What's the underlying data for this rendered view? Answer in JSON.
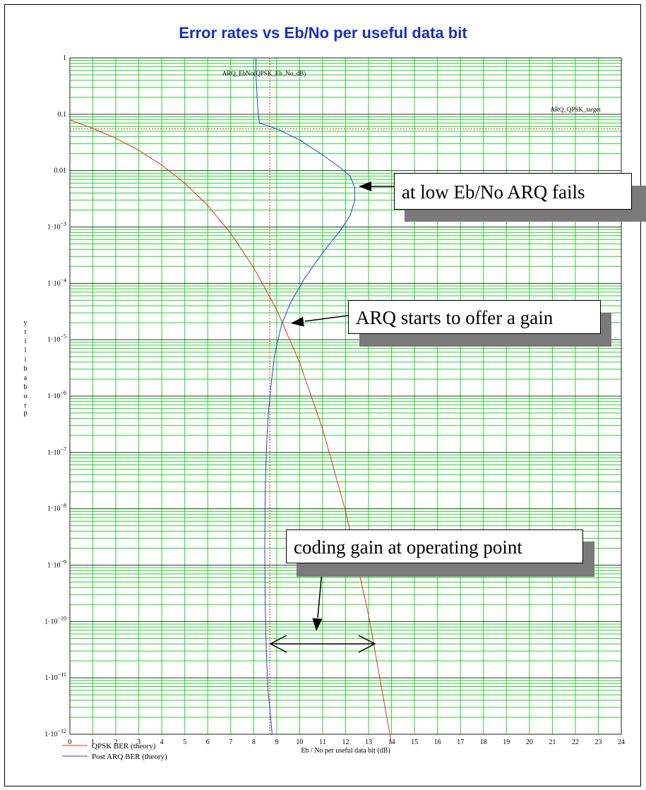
{
  "chart_data": {
    "type": "line",
    "title": "Error rates vs Eb/No per useful data bit",
    "xlabel": "Eb / No per useful data bit (dB)",
    "ylabel": "Probability",
    "y_scale": "log",
    "xlim": [
      0,
      24
    ],
    "ylim": [
      1e-12,
      1
    ],
    "x_ticks": [
      "0",
      "1",
      "2",
      "3",
      "4",
      "5",
      "6",
      "7",
      "8",
      "9",
      "10",
      "11",
      "12",
      "13",
      "14",
      "15",
      "16",
      "17",
      "18",
      "19",
      "20",
      "21",
      "22",
      "23",
      "24"
    ],
    "y_ticks": [
      {
        "value": 1,
        "base": "1",
        "exp": ""
      },
      {
        "value": 0.1,
        "base": "0.1",
        "exp": ""
      },
      {
        "value": 0.01,
        "base": "0.01",
        "exp": ""
      },
      {
        "value": 0.001,
        "base": "1·10",
        "exp": "−3"
      },
      {
        "value": 0.0001,
        "base": "1·10",
        "exp": "−4"
      },
      {
        "value": 1e-05,
        "base": "1·10",
        "exp": "−5"
      },
      {
        "value": 1e-06,
        "base": "1·10",
        "exp": "−6"
      },
      {
        "value": 1e-07,
        "base": "1·10",
        "exp": "−7"
      },
      {
        "value": 1e-08,
        "base": "1·10",
        "exp": "−8"
      },
      {
        "value": 1e-09,
        "base": "1·10",
        "exp": "−9"
      },
      {
        "value": 1e-10,
        "base": "1·10",
        "exp": "−10"
      },
      {
        "value": 1e-11,
        "base": "1·10",
        "exp": "−11"
      },
      {
        "value": 1e-12,
        "base": "1·10",
        "exp": "−12"
      }
    ],
    "grid": true,
    "legend_position": "bottom-left",
    "series": [
      {
        "name": "QPSK BER (theory)",
        "color": "#e0302a",
        "x": [
          0,
          1,
          2,
          3,
          4,
          5,
          6,
          7,
          8,
          9,
          10,
          11,
          12,
          13,
          14
        ],
        "y": [
          0.079,
          0.056,
          0.0375,
          0.0229,
          0.0125,
          0.006,
          0.0024,
          0.00077,
          0.00019,
          3.4e-05,
          3.9e-06,
          2.6e-07,
          9e-09,
          1.3e-10,
          6.8e-13
        ]
      },
      {
        "name": "Post ARQ BER (theory)",
        "color": "#2a3fd8",
        "x": [
          8.1,
          8.1,
          8.15,
          8.2,
          8.25,
          8.5,
          9.0,
          10.0,
          11.0,
          11.8,
          12.2,
          12.4,
          12.4,
          12.2,
          11.8,
          11.0,
          10.2,
          9.6,
          9.2,
          8.9,
          8.75,
          8.62,
          8.55,
          8.5,
          8.48,
          8.5,
          8.55,
          8.62,
          8.7,
          8.75,
          8.8
        ],
        "y": [
          1,
          0.5,
          0.2,
          0.1,
          0.07,
          0.065,
          0.055,
          0.035,
          0.019,
          0.011,
          0.008,
          0.005,
          0.003,
          0.0016,
          0.0009,
          0.00035,
          0.00012,
          4.5e-05,
          1.8e-05,
          5e-06,
          1.5e-06,
          4e-07,
          1e-07,
          2e-08,
          2e-09,
          2e-10,
          3e-11,
          6e-12,
          3e-12,
          1.8e-12,
          1e-12
        ]
      }
    ],
    "vertical_markers": [
      {
        "label": "ARQ_EbNo(QPSK_Eb_No_dB)",
        "x": 8.7,
        "color": "#e0302a"
      }
    ],
    "horizontal_markers": [
      {
        "label": "ARQ_QPSK_target",
        "y": 0.055,
        "color": "#e0302a"
      }
    ],
    "annotations": [
      {
        "text": "at low Eb/No ARQ fails"
      },
      {
        "text": "ARQ starts to offer a gain"
      },
      {
        "text": "coding gain at operating point"
      }
    ]
  }
}
